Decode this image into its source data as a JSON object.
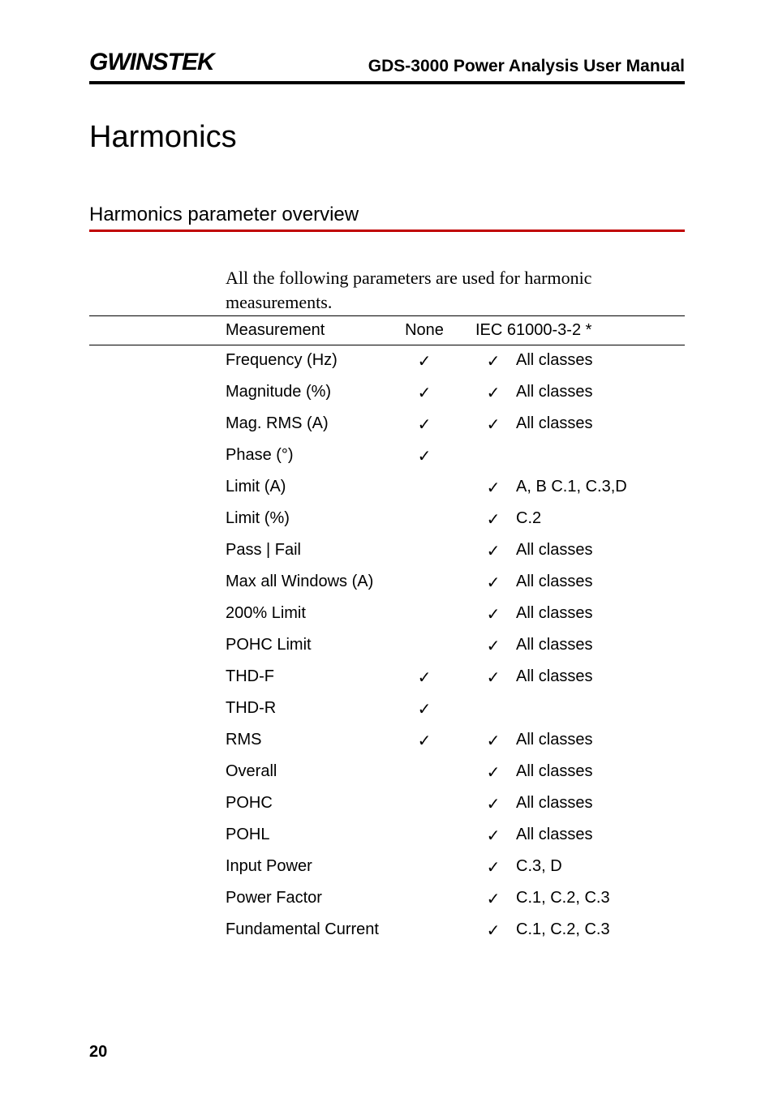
{
  "header": {
    "logo_text": "GWINSTEK",
    "manual_title": "GDS-3000 Power Analysis User Manual"
  },
  "heading": "Harmonics",
  "subheading": "Harmonics parameter overview",
  "red_rule_color": "#c00000",
  "intro_text": "All the following parameters are used for harmonic measurements.",
  "table": {
    "header": {
      "col1": "Measurement",
      "col2": "None",
      "col3": "IEC 61000-3-2 *"
    },
    "check_glyph": "✓",
    "rows": [
      {
        "measure": "Frequency (Hz)",
        "none": true,
        "iec": true,
        "class": "All classes"
      },
      {
        "measure": "Magnitude (%)",
        "none": true,
        "iec": true,
        "class": "All classes"
      },
      {
        "measure": "Mag. RMS (A)",
        "none": true,
        "iec": true,
        "class": "All classes"
      },
      {
        "measure": "Phase (°)",
        "none": true,
        "iec": false,
        "class": ""
      },
      {
        "measure": "Limit (A)",
        "none": false,
        "iec": true,
        "class": "A, B C.1, C.3,D"
      },
      {
        "measure": "Limit (%)",
        "none": false,
        "iec": true,
        "class": "C.2"
      },
      {
        "measure": "Pass | Fail",
        "none": false,
        "iec": true,
        "class": "All classes"
      },
      {
        "measure": "Max all Windows (A)",
        "none": false,
        "iec": true,
        "class": "All classes"
      },
      {
        "measure": "200% Limit",
        "none": false,
        "iec": true,
        "class": "All classes"
      },
      {
        "measure": "POHC Limit",
        "none": false,
        "iec": true,
        "class": "All classes"
      },
      {
        "measure": "THD-F",
        "none": true,
        "iec": true,
        "class": "All classes"
      },
      {
        "measure": "THD-R",
        "none": true,
        "iec": false,
        "class": ""
      },
      {
        "measure": "RMS",
        "none": true,
        "iec": true,
        "class": "All classes"
      },
      {
        "measure": "Overall",
        "none": false,
        "iec": true,
        "class": "All classes"
      },
      {
        "measure": "POHC",
        "none": false,
        "iec": true,
        "class": "All classes"
      },
      {
        "measure": "POHL",
        "none": false,
        "iec": true,
        "class": "All classes"
      },
      {
        "measure": "Input Power",
        "none": false,
        "iec": true,
        "class": "C.3, D"
      },
      {
        "measure": "Power Factor",
        "none": false,
        "iec": true,
        "class": "C.1, C.2, C.3"
      },
      {
        "measure": "Fundamental Current",
        "none": false,
        "iec": true,
        "class": "C.1, C.2, C.3"
      }
    ]
  },
  "page_number": "20",
  "colors": {
    "text": "#000000",
    "red_rule": "#c00000",
    "background": "#ffffff"
  },
  "typography": {
    "heading_fontsize": 38,
    "subheading_fontsize": 24,
    "body_fontsize": 22,
    "table_fontsize": 20,
    "logo_fontsize": 30,
    "manual_title_fontsize": 21
  }
}
